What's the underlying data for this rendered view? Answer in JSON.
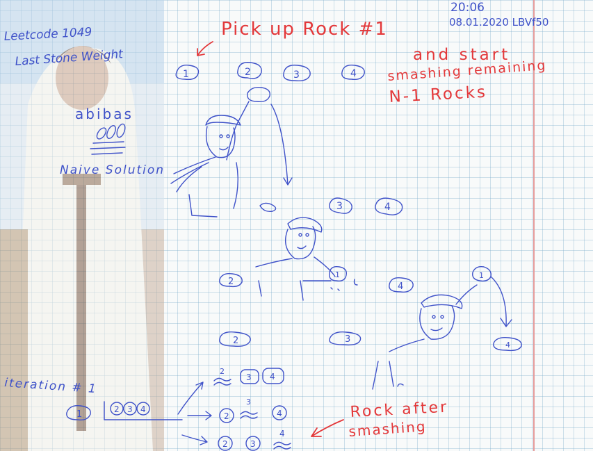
{
  "header": {
    "timestamp": "20:06",
    "date_id": "08.01.2020 LBVf50"
  },
  "problem": {
    "line1": "Leetcode 1049",
    "line2": "Last Stone Weight"
  },
  "brand": {
    "name": "abibas",
    "subtitle": "Naive Solution"
  },
  "annotations": {
    "pick_up": "Pick up Rock #1",
    "start_line1": "and start",
    "start_line2": "smashing remaining",
    "start_line3": "N-1 Rocks",
    "rock_after_line1": "Rock after",
    "rock_after_line2": "smashing"
  },
  "iteration": {
    "label": "iteration # 1"
  },
  "rocks_top": [
    "1",
    "2",
    "3",
    "4"
  ],
  "rocks_mid": [
    "3",
    "4"
  ],
  "rocks_smash": [
    "2",
    "1",
    "4"
  ],
  "rocks_lower": [
    "2",
    "3",
    "4"
  ],
  "iteration_rows": {
    "start_rock": "1",
    "start_group": [
      "2",
      "3",
      "4"
    ],
    "row1": [
      "2",
      "3",
      "4"
    ],
    "row2": [
      "2",
      "3",
      "4"
    ],
    "row3": [
      "2",
      "3",
      "4"
    ]
  },
  "colors": {
    "ink_blue": "#3f52c9",
    "ink_red": "#e3383a",
    "grid": "#9cc3d8",
    "margin": "#e49a9a"
  }
}
